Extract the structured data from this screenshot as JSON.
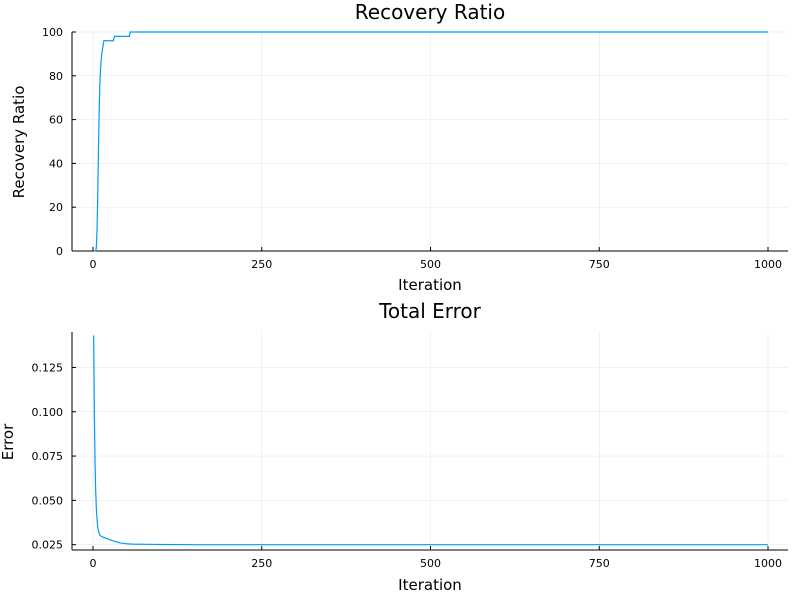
{
  "chart_data": [
    {
      "type": "line",
      "title": "Recovery Ratio",
      "xlabel": "Iteration",
      "ylabel": "Recovery Ratio",
      "xlim": [
        0,
        1000
      ],
      "ylim": [
        0,
        100
      ],
      "xticks": [
        0,
        250,
        500,
        750,
        1000
      ],
      "yticks": [
        0,
        20,
        40,
        60,
        80,
        100
      ],
      "xtick_labels": [
        "0",
        "250",
        "500",
        "750",
        "1000"
      ],
      "ytick_labels": [
        "0",
        "20",
        "40",
        "60",
        "80",
        "100"
      ],
      "grid": true,
      "legend": "none",
      "series": [
        {
          "color": "#009AFA",
          "x": [
            1,
            2,
            3,
            4,
            5,
            6,
            7,
            8,
            9,
            10,
            11,
            12,
            13,
            14,
            15,
            16,
            17,
            18,
            19,
            20,
            21,
            22,
            24,
            26,
            28,
            30,
            32,
            34,
            36,
            38,
            40,
            42,
            45,
            50,
            53,
            54,
            55,
            60,
            100,
            200,
            300,
            400,
            500,
            600,
            700,
            800,
            900,
            1000
          ],
          "y": [
            0,
            0,
            0,
            0,
            2,
            10,
            25,
            45,
            62,
            75,
            82,
            87,
            90,
            92,
            94,
            96,
            96,
            96,
            96,
            96,
            96,
            96,
            96,
            96,
            96,
            96,
            98,
            98,
            98,
            98,
            98,
            98,
            98,
            98,
            98,
            98,
            100,
            100,
            100,
            100,
            100,
            100,
            100,
            100,
            100,
            100,
            100,
            100
          ]
        }
      ]
    },
    {
      "type": "line",
      "title": "Total Error",
      "xlabel": "Iteration",
      "ylabel": "Error",
      "xlim": [
        0,
        1000
      ],
      "ylim": [
        0.022,
        0.145
      ],
      "xticks": [
        0,
        250,
        500,
        750,
        1000
      ],
      "yticks": [
        0.025,
        0.05,
        0.075,
        0.1,
        0.125
      ],
      "xtick_labels": [
        "0",
        "250",
        "500",
        "750",
        "1000"
      ],
      "ytick_labels": [
        "0.025",
        "0.050",
        "0.075",
        "0.100",
        "0.125"
      ],
      "grid": true,
      "legend": "none",
      "series": [
        {
          "color": "#009AFA",
          "x": [
            1,
            2,
            3,
            4,
            5,
            6,
            7,
            8,
            9,
            10,
            12,
            15,
            20,
            25,
            30,
            40,
            50,
            60,
            80,
            100,
            150,
            200,
            300,
            400,
            500,
            600,
            700,
            800,
            900,
            1000
          ],
          "y": [
            0.143,
            0.1,
            0.072,
            0.055,
            0.045,
            0.039,
            0.035,
            0.033,
            0.0315,
            0.0305,
            0.0298,
            0.0292,
            0.0285,
            0.0278,
            0.0271,
            0.026,
            0.0255,
            0.0253,
            0.0252,
            0.0251,
            0.025,
            0.025,
            0.025,
            0.025,
            0.025,
            0.025,
            0.025,
            0.025,
            0.025,
            0.025
          ]
        }
      ]
    }
  ]
}
